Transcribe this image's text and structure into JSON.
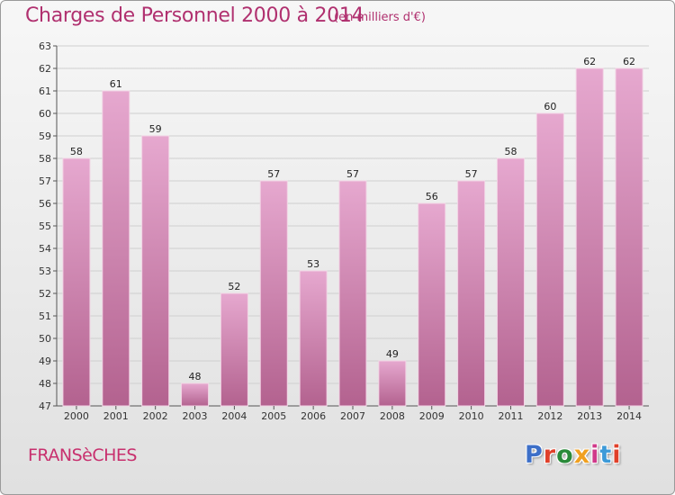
{
  "header": {
    "title": "Charges de Personnel 2000 à 2014",
    "subtitle": "(en milliers d'€)"
  },
  "footer": {
    "commune": "FRANSèCHES",
    "logo_text": "Proxiti",
    "logo_colors": [
      "#3d6fc8",
      "#e0402a",
      "#2a8a3a",
      "#f0a020",
      "#d03a8a",
      "#3d9ad8",
      "#e0402a"
    ]
  },
  "colors": {
    "bar_top": "#e6a8cf",
    "bar_bottom": "#b3628f",
    "title": "#b0306f"
  },
  "chart_data": {
    "type": "bar",
    "title": "Charges de Personnel 2000 à 2014",
    "subtitle": "(en milliers d'€)",
    "categories": [
      "2000",
      "2001",
      "2002",
      "2003",
      "2004",
      "2005",
      "2006",
      "2007",
      "2008",
      "2009",
      "2010",
      "2011",
      "2012",
      "2013",
      "2014"
    ],
    "values": [
      58,
      61,
      59,
      48,
      52,
      57,
      53,
      57,
      49,
      56,
      57,
      58,
      60,
      62,
      62
    ],
    "ylim": [
      47,
      63
    ],
    "yticks": [
      "47",
      "48",
      "49",
      "50",
      "51",
      "52",
      "53",
      "54",
      "55",
      "56",
      "57",
      "58",
      "59",
      "60",
      "61",
      "62",
      "63"
    ],
    "grid": true,
    "data_labels": true
  }
}
